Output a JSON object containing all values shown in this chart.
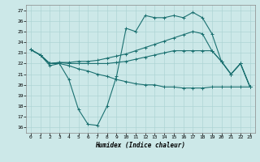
{
  "xlabel": "Humidex (Indice chaleur)",
  "bg_color": "#cce8e8",
  "line_color": "#1a7070",
  "grid_color": "#aed4d4",
  "xlim": [
    -0.5,
    23.5
  ],
  "ylim": [
    15.5,
    27.5
  ],
  "xticks": [
    0,
    1,
    2,
    3,
    4,
    5,
    6,
    7,
    8,
    9,
    10,
    11,
    12,
    13,
    14,
    15,
    16,
    17,
    18,
    19,
    20,
    21,
    22,
    23
  ],
  "yticks": [
    16,
    17,
    18,
    19,
    20,
    21,
    22,
    23,
    24,
    25,
    26,
    27
  ],
  "line1_x": [
    0,
    1,
    2,
    3,
    4,
    5,
    6,
    7,
    8,
    9,
    10,
    11,
    12,
    13,
    14,
    15,
    16,
    17,
    18,
    19,
    20,
    21,
    22,
    23
  ],
  "line1_y": [
    23.3,
    22.8,
    21.8,
    22.0,
    20.5,
    17.7,
    16.3,
    16.2,
    18.0,
    20.8,
    25.3,
    25.0,
    26.5,
    26.3,
    26.3,
    26.5,
    26.3,
    26.8,
    26.3,
    24.8,
    22.2,
    21.0,
    22.0,
    19.8
  ],
  "line2_x": [
    0,
    1,
    2,
    3,
    4,
    5,
    6,
    7,
    8,
    9,
    10,
    11,
    12,
    13,
    14,
    15,
    16,
    17,
    18,
    19,
    20,
    21,
    22,
    23
  ],
  "line2_y": [
    23.3,
    22.8,
    22.0,
    22.1,
    22.1,
    22.2,
    22.2,
    22.3,
    22.5,
    22.7,
    22.9,
    23.2,
    23.5,
    23.8,
    24.1,
    24.4,
    24.7,
    25.0,
    24.8,
    23.2,
    22.2,
    21.0,
    22.0,
    19.8
  ],
  "line3_x": [
    0,
    1,
    2,
    3,
    4,
    5,
    6,
    7,
    8,
    9,
    10,
    11,
    12,
    13,
    14,
    15,
    16,
    17,
    18,
    19,
    20,
    21,
    22,
    23
  ],
  "line3_y": [
    23.3,
    22.8,
    22.0,
    22.1,
    22.0,
    22.0,
    22.0,
    22.0,
    22.0,
    22.1,
    22.2,
    22.4,
    22.6,
    22.8,
    23.0,
    23.2,
    23.2,
    23.2,
    23.2,
    23.2,
    22.2,
    21.0,
    22.0,
    19.8
  ],
  "line4_x": [
    0,
    1,
    2,
    3,
    4,
    5,
    6,
    7,
    8,
    9,
    10,
    11,
    12,
    13,
    14,
    15,
    16,
    17,
    18,
    19,
    20,
    21,
    22,
    23
  ],
  "line4_y": [
    23.3,
    22.8,
    22.0,
    22.0,
    21.8,
    21.5,
    21.3,
    21.0,
    20.8,
    20.5,
    20.3,
    20.1,
    20.0,
    20.0,
    19.8,
    19.8,
    19.7,
    19.7,
    19.7,
    19.8,
    19.8,
    19.8,
    19.8,
    19.8
  ]
}
